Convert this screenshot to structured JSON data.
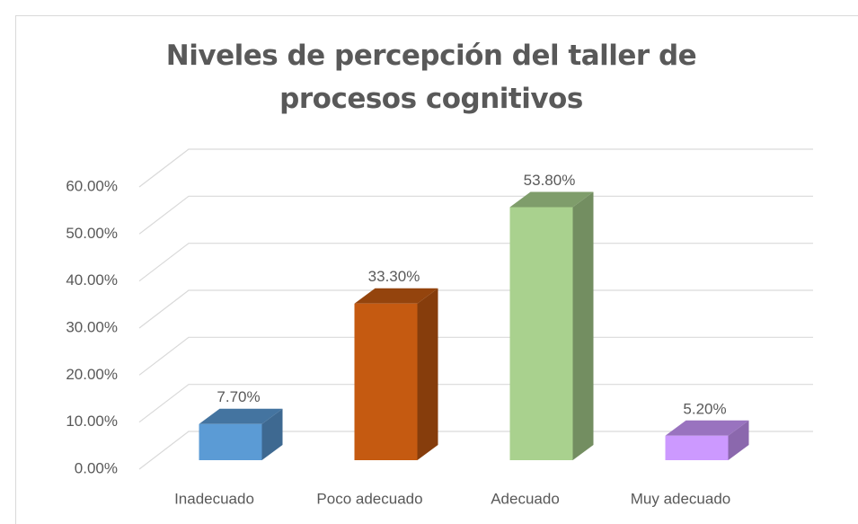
{
  "chart_data": {
    "type": "bar3d",
    "title": "Niveles de percepción del taller de procesos cognitivos",
    "categories": [
      "Inadecuado",
      "Poco adecuado",
      "Adecuado",
      "Muy adecuado"
    ],
    "values": [
      7.7,
      33.3,
      53.8,
      5.2
    ],
    "value_labels": [
      "7.70%",
      "33.30%",
      "53.80%",
      "5.20%"
    ],
    "colors": [
      "#5b9bd5",
      "#c55a11",
      "#a9d18e",
      "#cc99ff"
    ],
    "ylim": [
      0,
      60
    ],
    "yticks": [
      {
        "value": 0,
        "label": "0.00%"
      },
      {
        "value": 10,
        "label": "10.00%"
      },
      {
        "value": 20,
        "label": "20.00%"
      },
      {
        "value": 30,
        "label": "30.00%"
      },
      {
        "value": 40,
        "label": "40.00%"
      },
      {
        "value": 50,
        "label": "50.00%"
      },
      {
        "value": 60,
        "label": "60.00%"
      }
    ],
    "grid": true
  }
}
